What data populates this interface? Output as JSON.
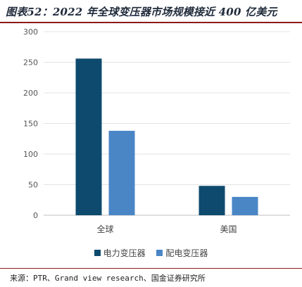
{
  "header": {
    "title": "图表52：2022 年全球变压器市场规模接近 400 亿美元"
  },
  "footer": {
    "source": "来源：PTR、Grand view research、国金证券研究所"
  },
  "chart_data": {
    "type": "bar",
    "categories": [
      "全球",
      "美国"
    ],
    "series": [
      {
        "name": "电力变压器",
        "color": "#0e4a6e",
        "values": [
          256,
          48
        ]
      },
      {
        "name": "配电变压器",
        "color": "#4a86c5",
        "values": [
          138,
          30
        ]
      }
    ],
    "yticks": [
      "0",
      "50",
      "100",
      "150",
      "200",
      "250",
      "300"
    ],
    "ylim": [
      0,
      300
    ],
    "grid": true,
    "legend_position": "bottom"
  }
}
